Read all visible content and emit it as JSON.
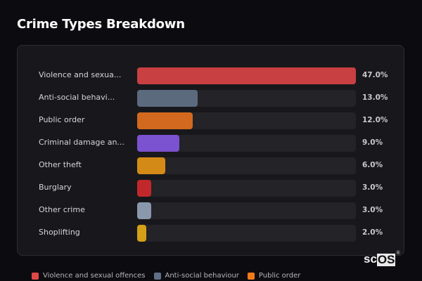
{
  "header": {
    "title": "Crime Types Breakdown"
  },
  "chart_data": {
    "type": "bar",
    "orientation": "horizontal",
    "title": "Crime Types Breakdown",
    "xlabel": "",
    "ylabel": "",
    "xlim": [
      0,
      47
    ],
    "grid": false,
    "legend_position": "bottom",
    "categories": [
      "Violence and sexual offences",
      "Anti-social behaviour",
      "Public order",
      "Criminal damage and arson",
      "Other theft",
      "Burglary",
      "Other crime",
      "Shoplifting"
    ],
    "display_labels": [
      "Violence and sexua...",
      "Anti-social behavi...",
      "Public order",
      "Criminal damage an...",
      "Other theft",
      "Burglary",
      "Other crime",
      "Shoplifting"
    ],
    "values": [
      47.0,
      13.0,
      12.0,
      9.0,
      6.0,
      3.0,
      3.0,
      2.0
    ],
    "value_labels": [
      "47.0%",
      "13.0%",
      "12.0%",
      "9.0%",
      "6.0%",
      "3.0%",
      "3.0%",
      "2.0%"
    ],
    "colors": [
      "#c94042",
      "#5c6a7e",
      "#d2691e",
      "#7b52d0",
      "#d48a16",
      "#c0282c",
      "#8a98ab",
      "#d4a017"
    ]
  },
  "rows": [
    {
      "label": "Violence and sexua...",
      "pct": "47.0%",
      "value": 47.0,
      "color": "#c94042"
    },
    {
      "label": "Anti-social behavi...",
      "pct": "13.0%",
      "value": 13.0,
      "color": "#5c6a7e"
    },
    {
      "label": "Public order",
      "pct": "12.0%",
      "value": 12.0,
      "color": "#d2691e"
    },
    {
      "label": "Criminal damage an...",
      "pct": "9.0%",
      "value": 9.0,
      "color": "#7b52d0"
    },
    {
      "label": "Other theft",
      "pct": "6.0%",
      "value": 6.0,
      "color": "#d48a16"
    },
    {
      "label": "Burglary",
      "pct": "3.0%",
      "value": 3.0,
      "color": "#c0282c"
    },
    {
      "label": "Other crime",
      "pct": "3.0%",
      "value": 3.0,
      "color": "#8a98ab"
    },
    {
      "label": "Shoplifting",
      "pct": "2.0%",
      "value": 2.0,
      "color": "#d4a017"
    }
  ],
  "legend": [
    {
      "label": "Violence and sexual offences",
      "color": "#e04848"
    },
    {
      "label": "Anti-social behaviour",
      "color": "#5f6f85"
    },
    {
      "label": "Public order",
      "color": "#f07a1a"
    }
  ],
  "logo": {
    "text_light": "sc",
    "text_box": "OS",
    "mark": "®"
  }
}
